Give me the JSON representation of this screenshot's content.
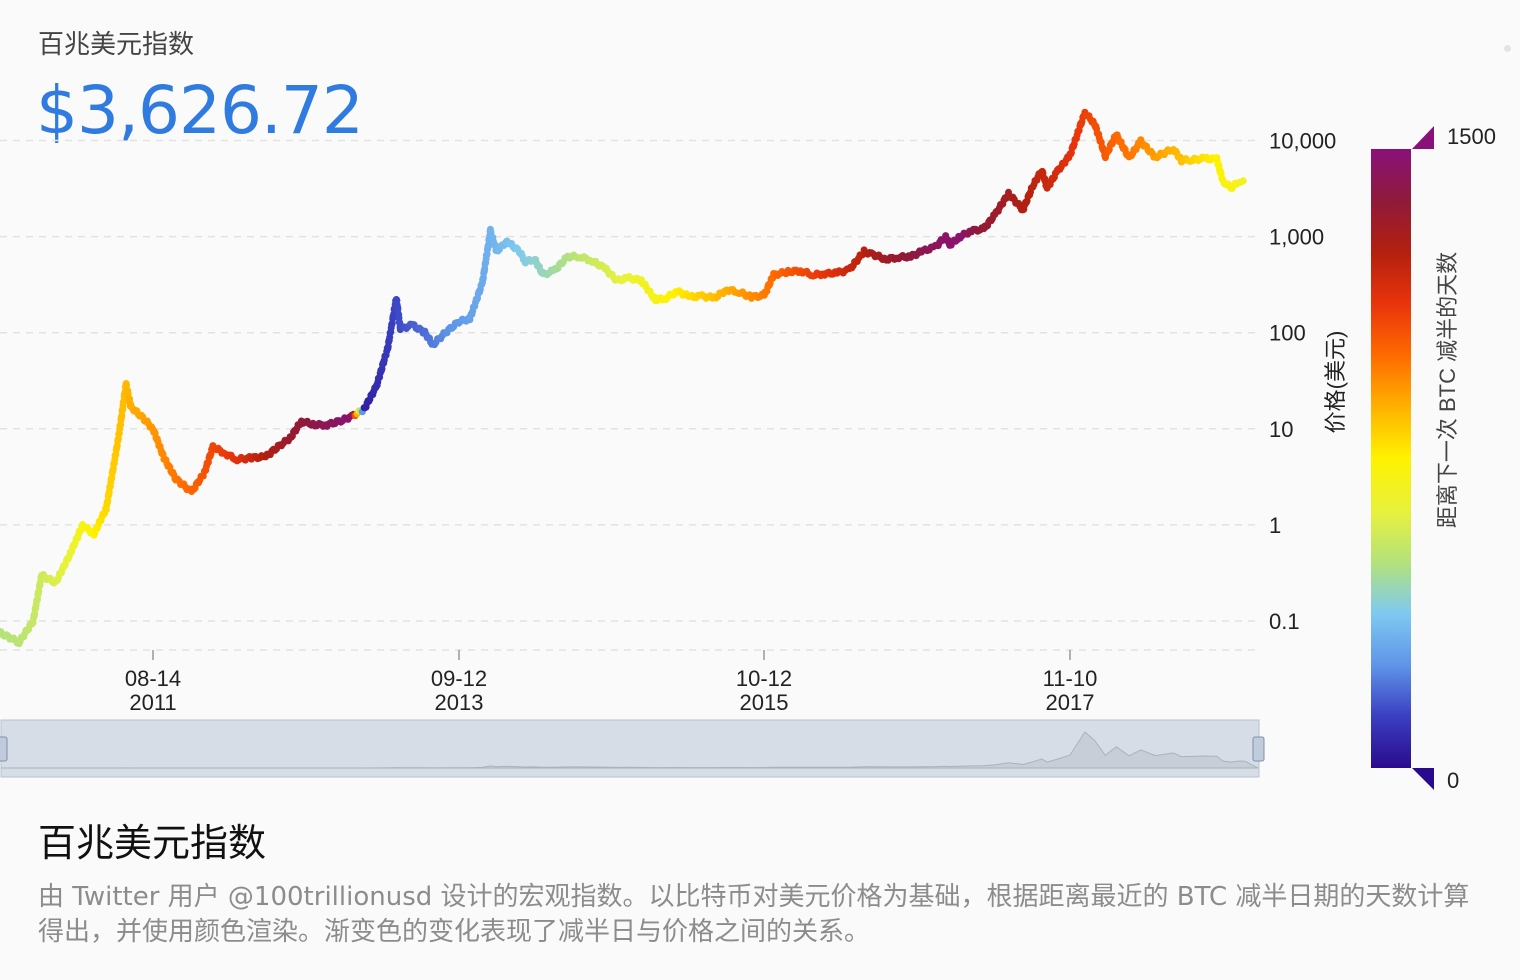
{
  "header": {
    "kicker": "百兆美元指数",
    "price": "$3,626.72"
  },
  "footer": {
    "title": "百兆美元指数",
    "description": "由 Twitter 用户 @100trillionusd 设计的宏观指数。以比特币对美元价格为基础，根据距离最近的 BTC 减半日期的天数计算得出，并使用颜色渲染。渐变色的变化表现了减半日与价格之间的关系。"
  },
  "colors": {
    "accent": "#2f7be0",
    "gradient": [
      "#2a0a8c",
      "#3a3fc2",
      "#5f95e8",
      "#7fc9f0",
      "#b5e27a",
      "#e8f23a",
      "#fff200",
      "#ffb100",
      "#ff6a00",
      "#e8340c",
      "#b3200f",
      "#8f1a3a",
      "#8a117a"
    ]
  },
  "chart_data": {
    "type": "scatter",
    "ylabel": "价格(美元)",
    "y_scale": "log",
    "y_ticks": [
      "10,000",
      "1,000",
      "100",
      "10",
      "1",
      "0.1"
    ],
    "x_ticks": [
      {
        "label": "08-14",
        "year": "2011"
      },
      {
        "label": "09-12",
        "year": "2013"
      },
      {
        "label": "10-12",
        "year": "2015"
      },
      {
        "label": "11-10",
        "year": "2017"
      }
    ],
    "colorbar": {
      "label": "距离下一次 BTC 减半的天数",
      "min": 0,
      "max": 1500,
      "min_label": "0",
      "max_label": "1500"
    },
    "series": [
      {
        "points": [
          [
            "2010-07-18",
            0.08,
            500
          ],
          [
            "2010-09-15",
            0.06,
            510
          ],
          [
            "2010-10-20",
            0.1,
            540
          ],
          [
            "2010-11-10",
            0.3,
            560
          ],
          [
            "2010-12-15",
            0.25,
            590
          ],
          [
            "2011-01-20",
            0.5,
            640
          ],
          [
            "2011-02-20",
            1.0,
            700
          ],
          [
            "2011-03-20",
            0.8,
            750
          ],
          [
            "2011-04-20",
            1.5,
            800
          ],
          [
            "2011-05-20",
            8,
            840
          ],
          [
            "2011-06-08",
            29,
            860
          ],
          [
            "2011-06-20",
            17,
            880
          ],
          [
            "2011-07-20",
            13,
            900
          ],
          [
            "2011-08-14",
            10,
            920
          ],
          [
            "2011-09-10",
            5,
            950
          ],
          [
            "2011-10-10",
            3,
            980
          ],
          [
            "2011-11-18",
            2.2,
            1010
          ],
          [
            "2011-12-20",
            3.5,
            1050
          ],
          [
            "2012-01-10",
            6.5,
            1080
          ],
          [
            "2012-02-10",
            5.5,
            1110
          ],
          [
            "2012-03-10",
            4.8,
            1140
          ],
          [
            "2012-04-15",
            5,
            1200
          ],
          [
            "2012-05-20",
            5.1,
            1260
          ],
          [
            "2012-06-20",
            6.5,
            1300
          ],
          [
            "2012-07-20",
            8,
            1340
          ],
          [
            "2012-08-17",
            12,
            1370
          ],
          [
            "2012-09-20",
            11,
            1400
          ],
          [
            "2012-10-20",
            11,
            1430
          ],
          [
            "2012-11-28",
            12.3,
            1460
          ],
          [
            "2012-12-20",
            13.5,
            1480
          ],
          [
            "2013-01-20",
            16,
            50
          ],
          [
            "2013-02-20",
            28,
            80
          ],
          [
            "2013-03-20",
            70,
            110
          ],
          [
            "2013-04-10",
            230,
            135
          ],
          [
            "2013-04-20",
            110,
            145
          ],
          [
            "2013-05-20",
            120,
            170
          ],
          [
            "2013-06-20",
            100,
            190
          ],
          [
            "2013-07-10",
            75,
            210
          ],
          [
            "2013-08-10",
            100,
            240
          ],
          [
            "2013-09-12",
            130,
            260
          ],
          [
            "2013-10-10",
            140,
            280
          ],
          [
            "2013-11-10",
            330,
            300
          ],
          [
            "2013-11-30",
            1150,
            320
          ],
          [
            "2013-12-15",
            700,
            330
          ],
          [
            "2014-01-10",
            900,
            350
          ],
          [
            "2014-02-10",
            700,
            380
          ],
          [
            "2014-02-25",
            550,
            390
          ],
          [
            "2014-03-20",
            580,
            410
          ],
          [
            "2014-04-10",
            400,
            430
          ],
          [
            "2014-05-10",
            450,
            460
          ],
          [
            "2014-06-10",
            620,
            490
          ],
          [
            "2014-07-10",
            620,
            520
          ],
          [
            "2014-08-10",
            560,
            550
          ],
          [
            "2014-09-10",
            470,
            580
          ],
          [
            "2014-10-10",
            350,
            610
          ],
          [
            "2014-11-10",
            370,
            640
          ],
          [
            "2014-12-10",
            350,
            670
          ],
          [
            "2015-01-14",
            220,
            700
          ],
          [
            "2015-02-10",
            230,
            730
          ],
          [
            "2015-03-10",
            270,
            760
          ],
          [
            "2015-04-10",
            235,
            790
          ],
          [
            "2015-05-10",
            240,
            820
          ],
          [
            "2015-06-10",
            230,
            850
          ],
          [
            "2015-07-10",
            280,
            880
          ],
          [
            "2015-08-10",
            265,
            910
          ],
          [
            "2015-09-10",
            235,
            940
          ],
          [
            "2015-10-12",
            245,
            970
          ],
          [
            "2015-11-04",
            400,
            1000
          ],
          [
            "2015-12-10",
            430,
            1040
          ],
          [
            "2016-01-10",
            440,
            1070
          ],
          [
            "2016-02-10",
            400,
            1100
          ],
          [
            "2016-03-10",
            410,
            1130
          ],
          [
            "2016-04-10",
            420,
            1160
          ],
          [
            "2016-05-10",
            450,
            1200
          ],
          [
            "2016-06-16",
            700,
            1230
          ],
          [
            "2016-07-09",
            650,
            1280
          ],
          [
            "2016-08-10",
            580,
            1320
          ],
          [
            "2016-09-10",
            610,
            1350
          ],
          [
            "2016-10-10",
            620,
            1380
          ],
          [
            "2016-11-10",
            710,
            1410
          ],
          [
            "2016-12-10",
            780,
            1440
          ],
          [
            "2017-01-05",
            1000,
            1460
          ],
          [
            "2017-01-15",
            820,
            1470
          ],
          [
            "2017-02-10",
            1000,
            1480
          ],
          [
            "2017-03-10",
            1150,
            1400
          ],
          [
            "2017-04-10",
            1200,
            1360
          ],
          [
            "2017-05-10",
            1750,
            1330
          ],
          [
            "2017-06-10",
            2800,
            1300
          ],
          [
            "2017-07-16",
            1900,
            1260
          ],
          [
            "2017-08-10",
            3400,
            1230
          ],
          [
            "2017-09-01",
            4900,
            1210
          ],
          [
            "2017-09-14",
            3200,
            1200
          ],
          [
            "2017-10-10",
            4800,
            1170
          ],
          [
            "2017-11-10",
            7000,
            1140
          ],
          [
            "2017-12-17",
            19500,
            1100
          ],
          [
            "2018-01-10",
            15000,
            1070
          ],
          [
            "2018-02-06",
            6900,
            1040
          ],
          [
            "2018-03-05",
            11500,
            1010
          ],
          [
            "2018-04-06",
            6600,
            980
          ],
          [
            "2018-05-05",
            9800,
            950
          ],
          [
            "2018-06-10",
            6700,
            910
          ],
          [
            "2018-07-25",
            8200,
            870
          ],
          [
            "2018-08-14",
            6200,
            850
          ],
          [
            "2018-09-10",
            6300,
            810
          ],
          [
            "2018-10-10",
            6500,
            780
          ],
          [
            "2018-11-10",
            6400,
            750
          ],
          [
            "2018-11-25",
            3800,
            730
          ],
          [
            "2018-12-15",
            3200,
            710
          ],
          [
            "2019-01-05",
            3800,
            690
          ],
          [
            "2019-01-20",
            3600,
            675
          ]
        ]
      }
    ]
  }
}
